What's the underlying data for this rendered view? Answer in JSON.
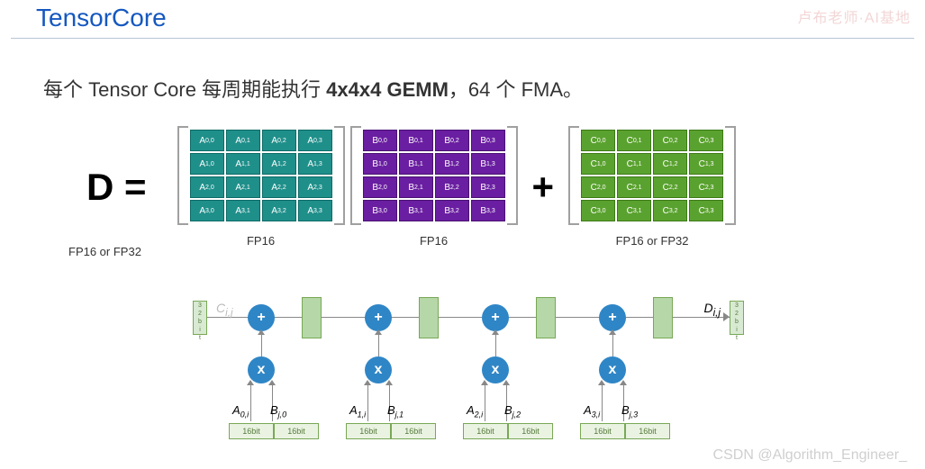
{
  "header": {
    "title": "TensorCore",
    "title_color": "#1558c0"
  },
  "watermarks": {
    "top_right": "卢布老师·AI基地",
    "bottom_right": "CSDN @Algorithm_Engineer_"
  },
  "description": {
    "prefix": "每个 Tensor Core 每周期能执行 ",
    "bold": "4x4x4  GEMM",
    "suffix": "，64 个 FMA。"
  },
  "equation": {
    "lhs": "D =",
    "lhs_label": "FP16 or FP32",
    "matrixA": {
      "letter": "A",
      "color": "#1f8f8a",
      "border": "#0d6b66",
      "label": "FP16"
    },
    "matrixB": {
      "letter": "B",
      "color": "#6a1ea1",
      "border": "#4a1272",
      "label": "FP16"
    },
    "plus": "+",
    "matrixC": {
      "letter": "C",
      "color": "#5aa22f",
      "border": "#3d7a18",
      "label": "FP16 or FP32"
    },
    "dims": [
      [
        0,
        0
      ],
      [
        0,
        1
      ],
      [
        0,
        2
      ],
      [
        0,
        3
      ],
      [
        1,
        0
      ],
      [
        1,
        1
      ],
      [
        1,
        2
      ],
      [
        1,
        3
      ],
      [
        2,
        0
      ],
      [
        2,
        1
      ],
      [
        2,
        2
      ],
      [
        2,
        3
      ],
      [
        3,
        0
      ],
      [
        3,
        1
      ],
      [
        3,
        2
      ],
      [
        3,
        3
      ]
    ]
  },
  "circuit": {
    "input_label": "C",
    "input_sub": "i,j",
    "output_label": "D",
    "output_sub": "i,j",
    "bit_side": [
      "3",
      "2",
      "b",
      "i",
      "t"
    ],
    "add_symbol": "+",
    "add_color": "#2f86c6",
    "mul_symbol": "x",
    "mul_color": "#2f86c6",
    "stage_color": "#b6d7a8",
    "stages": [
      {
        "a": "A",
        "a_sub": "0,i",
        "b": "B",
        "b_sub": "j,0"
      },
      {
        "a": "A",
        "a_sub": "1,i",
        "b": "B",
        "b_sub": "j,1"
      },
      {
        "a": "A",
        "a_sub": "2,i",
        "b": "B",
        "b_sub": "j,2"
      },
      {
        "a": "A",
        "a_sub": "3,i",
        "b": "B",
        "b_sub": "j,3"
      }
    ],
    "bit16_label": "16bit"
  }
}
